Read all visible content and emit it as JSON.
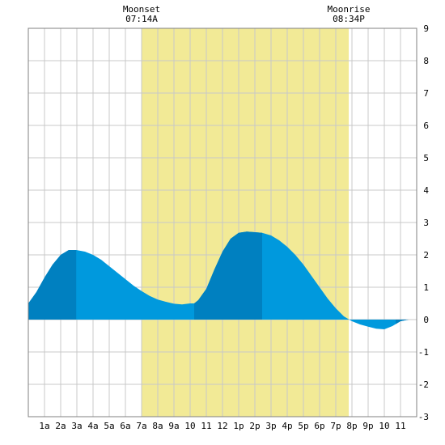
{
  "chart_data": {
    "type": "area",
    "title": "",
    "xlabel": "",
    "ylabel": "",
    "x_tick_labels": [
      "1a",
      "2a",
      "3a",
      "4a",
      "5a",
      "6a",
      "7a",
      "8a",
      "9a",
      "10",
      "11",
      "12",
      "1p",
      "2p",
      "3p",
      "4p",
      "5p",
      "6p",
      "7p",
      "8p",
      "9p",
      "10",
      "11"
    ],
    "y_tick_labels": [
      "9",
      "8",
      "7",
      "6",
      "5",
      "4",
      "3",
      "2",
      "1",
      "0",
      "-1",
      "-2",
      "-3"
    ],
    "xlim": [
      0,
      24
    ],
    "ylim": [
      -3,
      9
    ],
    "grid": true,
    "annotations": [
      {
        "name": "moonset",
        "label": "Moonset",
        "time": "07:14A",
        "hour": 7.0
      },
      {
        "name": "moonrise",
        "label": "Moonrise",
        "time": "08:34P",
        "hour": 19.8
      }
    ],
    "daylight_band": {
      "start_hour": 7.0,
      "end_hour": 19.8,
      "color": "#f2ea96"
    },
    "series": [
      {
        "x": [
          0,
          0.5,
          1,
          1.5,
          2,
          2.5,
          2.96,
          3.5,
          4,
          4.5,
          5,
          5.5,
          6,
          6.5,
          7,
          7.5,
          8,
          8.5,
          9,
          9.5,
          10,
          10.25,
          10.5,
          11,
          11.5,
          12,
          12.5,
          13,
          13.5,
          14,
          14.45,
          15,
          15.5,
          16,
          16.5,
          17,
          17.5,
          18,
          18.5,
          19,
          19.5,
          20,
          20.5,
          21,
          21.5,
          22,
          22.5,
          23,
          23.5,
          24
        ],
        "y": [
          0.5,
          0.85,
          1.3,
          1.7,
          2.0,
          2.15,
          2.15,
          2.1,
          2.0,
          1.85,
          1.65,
          1.45,
          1.25,
          1.05,
          0.88,
          0.73,
          0.62,
          0.55,
          0.49,
          0.47,
          0.5,
          0.5,
          0.6,
          0.95,
          1.55,
          2.1,
          2.5,
          2.68,
          2.72,
          2.7,
          2.68,
          2.6,
          2.45,
          2.25,
          2.0,
          1.7,
          1.35,
          1.0,
          0.65,
          0.35,
          0.1,
          -0.05,
          -0.15,
          -0.22,
          -0.28,
          -0.3,
          -0.2,
          -0.05,
          0.0,
          0.0
        ]
      }
    ],
    "dark_segments": [
      {
        "from_hour": 0,
        "to_hour": 2.96
      },
      {
        "from_hour": 10.25,
        "to_hour": 14.45
      },
      {
        "from_hour": 22.7,
        "to_hour": 24
      }
    ],
    "colors": {
      "tide_fill": "#0099dd",
      "tide_dark": "#0080c0",
      "grid": "#c8c8c8",
      "border": "#808080",
      "background": "#ffffff"
    }
  }
}
